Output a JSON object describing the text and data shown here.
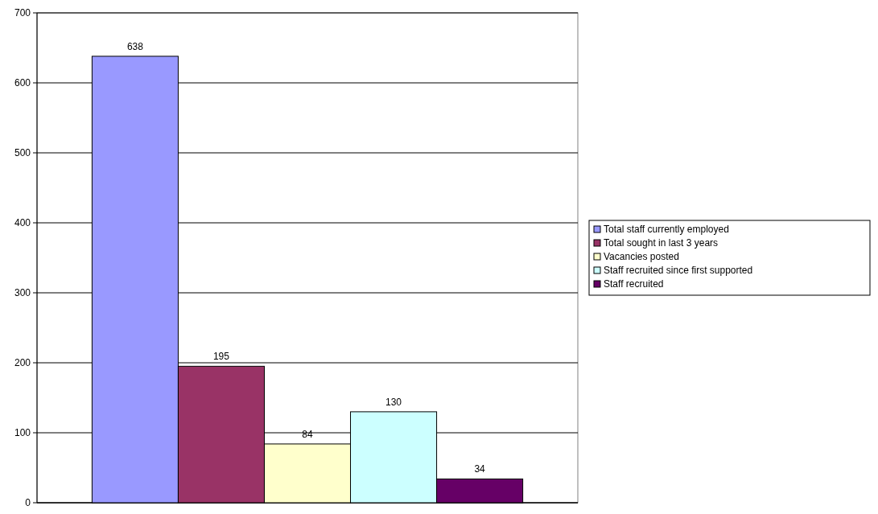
{
  "chart_data": {
    "type": "bar",
    "categories": [
      null
    ],
    "series": [
      {
        "name": "Total staff currently employed",
        "color": "#9999ff",
        "values": [
          638
        ]
      },
      {
        "name": "Total sought in last 3 years",
        "color": "#993366",
        "values": [
          195
        ]
      },
      {
        "name": "Vacancies posted",
        "color": "#ffffcc",
        "values": [
          84
        ]
      },
      {
        "name": "Staff recruited since first supported",
        "color": "#ccffff",
        "values": [
          130
        ]
      },
      {
        "name": "Staff recruited",
        "color": "#660066",
        "values": [
          34
        ]
      }
    ],
    "ylim": [
      0,
      700
    ],
    "yticks": [
      0,
      100,
      200,
      300,
      400,
      500,
      600,
      700
    ],
    "grid": "y",
    "legend": "right",
    "data_labels": true
  }
}
